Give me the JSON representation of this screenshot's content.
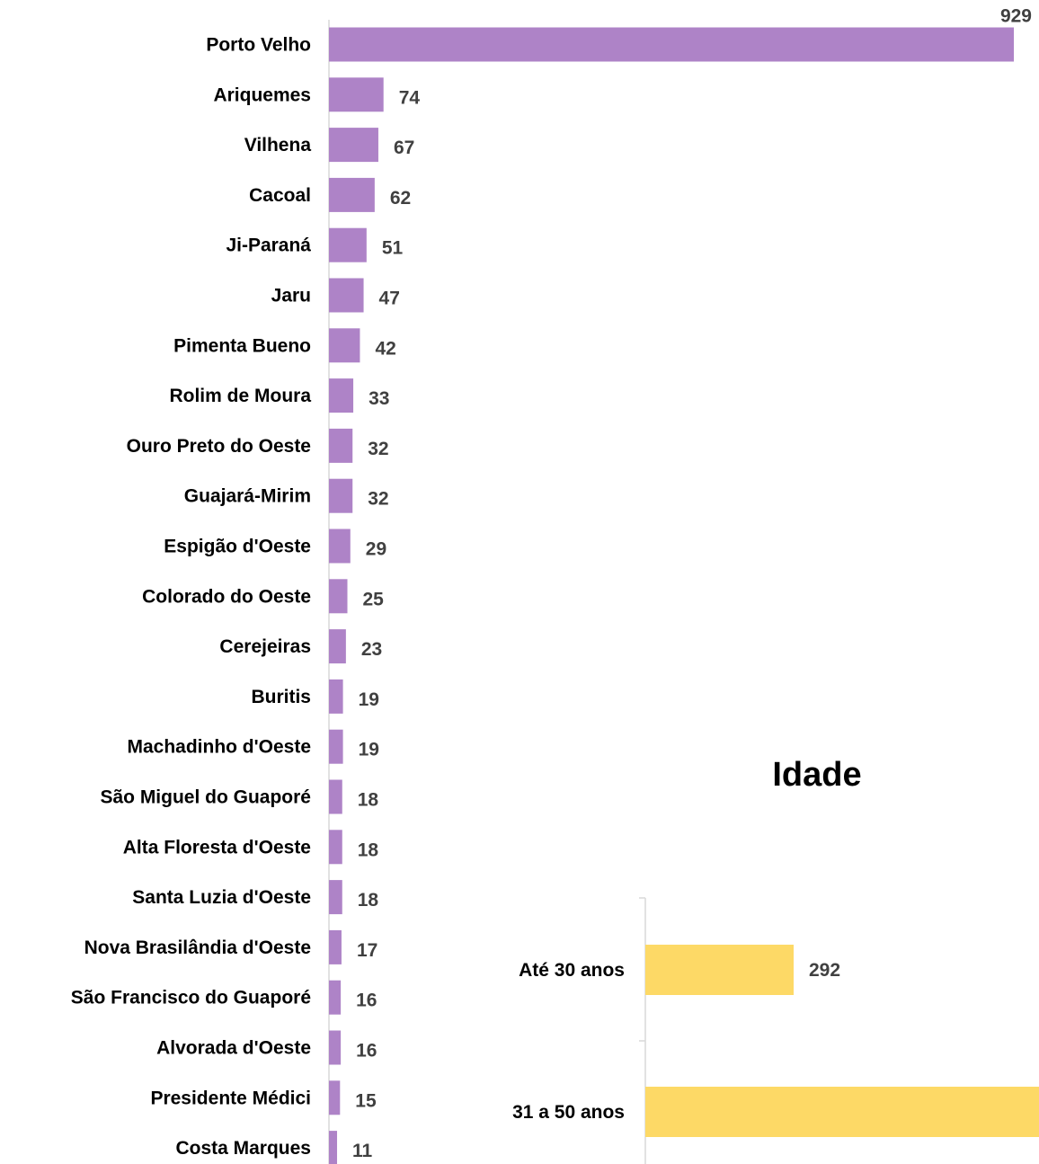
{
  "chart_data": [
    {
      "type": "bar",
      "orientation": "horizontal",
      "title": "",
      "categories": [
        "Porto Velho",
        "Ariquemes",
        "Vilhena",
        "Cacoal",
        "Ji-Paraná",
        "Jaru",
        "Pimenta Bueno",
        "Rolim de Moura",
        "Ouro Preto do Oeste",
        "Guajará-Mirim",
        "Espigão d'Oeste",
        "Colorado do Oeste",
        "Cerejeiras",
        "Buritis",
        "Machadinho d'Oeste",
        "São Miguel do Guaporé",
        "Alta Floresta d'Oeste",
        "Santa Luzia d'Oeste",
        "Nova Brasilândia  d'Oeste",
        "São Francisco do Guaporé",
        "Alvorada d'Oeste",
        "Presidente Médici",
        "Costa Marques"
      ],
      "values": [
        929,
        74,
        67,
        62,
        51,
        47,
        42,
        33,
        32,
        32,
        29,
        25,
        23,
        19,
        19,
        18,
        18,
        18,
        17,
        16,
        16,
        15,
        11
      ],
      "color": "#ae83c7",
      "data_labels": true,
      "xlim": [
        0,
        929
      ]
    },
    {
      "type": "bar",
      "orientation": "horizontal",
      "title": "Idade",
      "categories": [
        "Até 30 anos",
        "31 a 50 anos"
      ],
      "values": [
        292,
        null
      ],
      "value_labels": [
        "292",
        ""
      ],
      "color": "#fdd966",
      "data_labels": true
    }
  ]
}
